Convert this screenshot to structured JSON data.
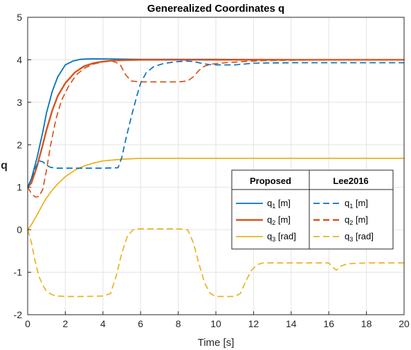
{
  "chart_data": {
    "type": "line",
    "title": "Generealized Coordinates q",
    "xlabel": "Time [s]",
    "ylabel": "q",
    "xlim": [
      0,
      20
    ],
    "ylim": [
      -2,
      5
    ],
    "xticks": [
      "0",
      "2",
      "4",
      "6",
      "8",
      "10",
      "12",
      "14",
      "16",
      "18",
      "20"
    ],
    "yticks": [
      "-2",
      "-1",
      "0",
      "1",
      "2",
      "3",
      "4",
      "5"
    ],
    "grid": true,
    "legend": {
      "placement": "center-right",
      "columns": [
        "Proposed",
        "Lee2016"
      ],
      "entries": [
        {
          "base": "q",
          "sub": "1",
          "unit": " [m]"
        },
        {
          "base": "q",
          "sub": "2",
          "unit": " [m]"
        },
        {
          "base": "q",
          "sub": "3",
          "unit": " [rad]"
        }
      ]
    },
    "colors": {
      "q1": "#0072BD",
      "q2": "#D95319",
      "q3": "#EDB120"
    },
    "series": [
      {
        "group": "Proposed",
        "var": "q1",
        "style": "solid",
        "x": [
          0,
          0.2,
          0.5,
          0.8,
          1.0,
          1.3,
          1.6,
          2.0,
          2.4,
          2.8,
          3.2,
          4.0,
          6,
          10,
          14,
          20
        ],
        "y": [
          1.0,
          1.2,
          1.7,
          2.3,
          2.75,
          3.25,
          3.6,
          3.88,
          3.97,
          4.01,
          4.02,
          4.02,
          4.01,
          4.01,
          4.0,
          4.0
        ]
      },
      {
        "group": "Proposed",
        "var": "q2",
        "style": "solid",
        "x": [
          0,
          0.2,
          0.5,
          0.8,
          1.0,
          1.3,
          1.6,
          2.0,
          2.5,
          3.0,
          3.5,
          4.0,
          4.5,
          5.0,
          6.0,
          8,
          12,
          20
        ],
        "y": [
          1.0,
          1.1,
          1.5,
          2.0,
          2.35,
          2.8,
          3.15,
          3.45,
          3.7,
          3.85,
          3.92,
          3.96,
          3.98,
          3.99,
          4.0,
          4.0,
          4.0,
          4.0
        ]
      },
      {
        "group": "Proposed",
        "var": "q3",
        "style": "solid",
        "x": [
          0,
          0.2,
          0.5,
          0.8,
          1.0,
          1.3,
          1.6,
          2.0,
          2.5,
          3.0,
          3.5,
          4.0,
          5.0,
          6.0,
          8,
          12,
          20
        ],
        "y": [
          0.0,
          0.12,
          0.35,
          0.6,
          0.75,
          0.93,
          1.08,
          1.25,
          1.4,
          1.5,
          1.57,
          1.62,
          1.66,
          1.68,
          1.68,
          1.68,
          1.68
        ]
      },
      {
        "group": "Lee2016",
        "var": "q1",
        "style": "dashed",
        "x": [
          0,
          0.2,
          0.4,
          0.6,
          0.8,
          1.0,
          1.2,
          1.5,
          2.0,
          3.0,
          4.0,
          4.8,
          5.0,
          5.2,
          5.5,
          5.8,
          6.0,
          6.3,
          6.7,
          7.2,
          7.8,
          8.4,
          8.8,
          9.2,
          9.6,
          10.0,
          10.5,
          11.0,
          11.5,
          12.0,
          14,
          16,
          18,
          20
        ],
        "y": [
          1.0,
          1.2,
          1.45,
          1.62,
          1.6,
          1.52,
          1.47,
          1.45,
          1.45,
          1.45,
          1.45,
          1.46,
          1.7,
          2.1,
          2.65,
          3.15,
          3.45,
          3.7,
          3.84,
          3.91,
          3.95,
          3.97,
          3.96,
          3.92,
          3.89,
          3.88,
          3.88,
          3.88,
          3.9,
          3.92,
          3.93,
          3.93,
          3.93,
          3.93
        ]
      },
      {
        "group": "Lee2016",
        "var": "q2",
        "style": "dashed",
        "x": [
          0,
          0.2,
          0.4,
          0.6,
          0.8,
          1.0,
          1.2,
          1.5,
          1.8,
          2.2,
          2.6,
          3.0,
          3.5,
          4.0,
          4.5,
          4.9,
          5.2,
          5.5,
          6.0,
          7.0,
          8.0,
          8.5,
          8.8,
          9.1,
          9.4,
          9.8,
          10.5,
          11.5,
          12.5,
          14,
          16,
          20
        ],
        "y": [
          1.0,
          0.85,
          0.77,
          0.78,
          0.95,
          1.4,
          1.95,
          2.6,
          3.05,
          3.4,
          3.65,
          3.8,
          3.9,
          3.95,
          3.97,
          3.9,
          3.65,
          3.5,
          3.48,
          3.48,
          3.48,
          3.5,
          3.6,
          3.75,
          3.85,
          3.9,
          3.93,
          3.96,
          3.98,
          3.99,
          4.0,
          4.0
        ]
      },
      {
        "group": "Lee2016",
        "var": "q3",
        "style": "dashed",
        "x": [
          0,
          0.2,
          0.4,
          0.6,
          0.8,
          1.0,
          1.3,
          1.6,
          2.0,
          3.0,
          4.0,
          4.4,
          4.7,
          5.0,
          5.3,
          5.6,
          5.9,
          6.2,
          7.0,
          8.0,
          8.5,
          8.8,
          9.1,
          9.4,
          9.7,
          10.0,
          10.5,
          11.0,
          11.3,
          11.6,
          11.9,
          12.2,
          12.5,
          13.0,
          14,
          15,
          16.0,
          16.2,
          16.4,
          16.6,
          17,
          18,
          20
        ],
        "y": [
          0.0,
          -0.3,
          -0.75,
          -1.1,
          -1.3,
          -1.45,
          -1.53,
          -1.56,
          -1.57,
          -1.57,
          -1.56,
          -1.5,
          -1.1,
          -0.55,
          -0.15,
          0.0,
          0.02,
          0.02,
          0.02,
          0.02,
          0.0,
          -0.3,
          -0.8,
          -1.25,
          -1.5,
          -1.57,
          -1.57,
          -1.57,
          -1.5,
          -1.2,
          -0.95,
          -0.82,
          -0.78,
          -0.78,
          -0.78,
          -0.78,
          -0.78,
          -0.88,
          -0.95,
          -0.86,
          -0.8,
          -0.78,
          -0.78
        ]
      }
    ]
  }
}
